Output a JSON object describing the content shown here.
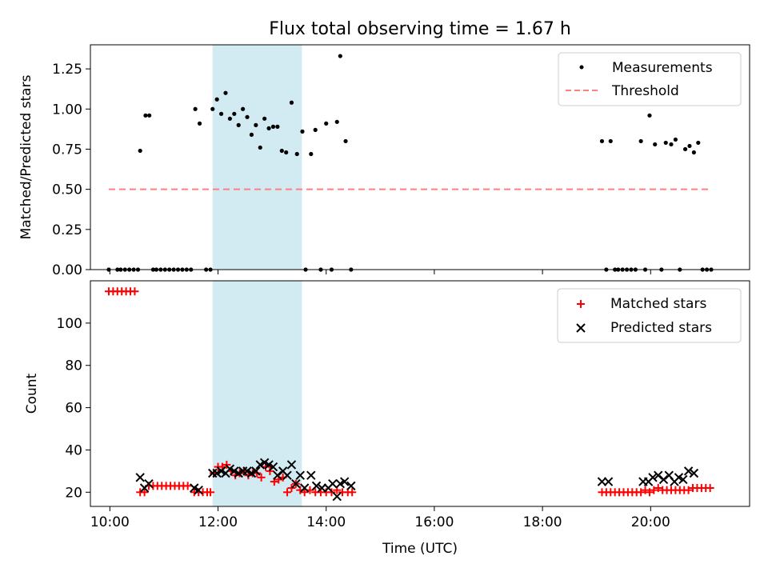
{
  "chart_data": [
    {
      "type": "scatter",
      "title": "Flux total observing time = 1.67 h",
      "xlabel": "",
      "ylabel": "Matched/Predicted stars",
      "xlim": [
        9.64,
        21.83
      ],
      "ylim": [
        0.0,
        1.4
      ],
      "y_ticks": [
        0.0,
        0.25,
        0.5,
        0.75,
        1.0,
        1.25
      ],
      "y_tick_labels": [
        "0.00",
        "0.25",
        "0.50",
        "0.75",
        "1.00",
        "1.25"
      ],
      "x_ticks": [
        10,
        12,
        14,
        16,
        18,
        20
      ],
      "highlight_span": [
        11.9,
        13.55
      ],
      "legend": {
        "placement": "top-right",
        "entries": [
          "Measurements",
          "Threshold"
        ]
      },
      "series": [
        {
          "name": "Measurements",
          "marker": "dot",
          "color": "#000000",
          "x": [
            9.98,
            10.14,
            10.2,
            10.28,
            10.36,
            10.44,
            10.52,
            10.56,
            10.66,
            10.73,
            10.8,
            10.86,
            10.94,
            11.02,
            11.1,
            11.18,
            11.26,
            11.34,
            11.42,
            11.5,
            11.58,
            11.66,
            11.78,
            11.86,
            11.9,
            11.98,
            12.06,
            12.14,
            12.22,
            12.3,
            12.38,
            12.46,
            12.54,
            12.62,
            12.7,
            12.78,
            12.86,
            12.94,
            13.02,
            13.1,
            13.18,
            13.26,
            13.36,
            13.46,
            13.56,
            13.62,
            13.72,
            13.8,
            13.9,
            14.0,
            14.1,
            14.2,
            14.26,
            14.36,
            14.46,
            19.1,
            19.18,
            19.26,
            19.34,
            19.4,
            19.48,
            19.56,
            19.64,
            19.72,
            19.82,
            19.9,
            19.98,
            20.08,
            20.2,
            20.28,
            20.38,
            20.46,
            20.54,
            20.64,
            20.72,
            20.8,
            20.88,
            20.96,
            21.04,
            21.12
          ],
          "y": [
            0.0,
            0.0,
            0.0,
            0.0,
            0.0,
            0.0,
            0.0,
            0.74,
            0.96,
            0.96,
            0.0,
            0.0,
            0.0,
            0.0,
            0.0,
            0.0,
            0.0,
            0.0,
            0.0,
            0.0,
            1.0,
            0.91,
            0.0,
            0.0,
            1.0,
            1.06,
            0.97,
            1.1,
            0.94,
            0.97,
            0.9,
            1.0,
            0.95,
            0.84,
            0.9,
            0.76,
            0.94,
            0.88,
            0.89,
            0.89,
            0.74,
            0.73,
            1.04,
            0.72,
            0.86,
            0.0,
            0.72,
            0.87,
            0.0,
            0.91,
            0.0,
            0.92,
            1.33,
            0.8,
            0.0,
            0.8,
            0.0,
            0.8,
            0.0,
            0.0,
            0.0,
            0.0,
            0.0,
            0.0,
            0.8,
            0.0,
            0.96,
            0.78,
            0.0,
            0.79,
            0.78,
            0.81,
            0.0,
            0.75,
            0.77,
            0.73,
            0.79,
            0.0,
            0.0,
            0.0
          ],
          "x_zero_fix": [
            9.98,
            10.14,
            10.2,
            10.28,
            10.36,
            10.44,
            10.52,
            10.8,
            10.86,
            10.94,
            11.02,
            11.1,
            11.18,
            11.26,
            11.34,
            11.42,
            11.5,
            11.78,
            11.86,
            13.62,
            13.9,
            14.1,
            14.46,
            19.18,
            19.34,
            19.4,
            19.48,
            19.56,
            19.64,
            19.72,
            19.9,
            20.2,
            20.54,
            20.96,
            21.04,
            21.12
          ]
        },
        {
          "name": "Threshold",
          "marker": "dashed-line",
          "color": "#ff7f7f",
          "x": [
            9.98,
            21.12
          ],
          "y": [
            0.5,
            0.5
          ]
        }
      ]
    },
    {
      "type": "scatter",
      "title": "",
      "xlabel": "Time (UTC)",
      "ylabel": "Count",
      "xlim": [
        9.64,
        21.83
      ],
      "ylim": [
        13.3,
        120
      ],
      "y_ticks": [
        20,
        40,
        60,
        80,
        100
      ],
      "y_tick_labels": [
        "20",
        "40",
        "60",
        "80",
        "100"
      ],
      "x_ticks": [
        10,
        12,
        14,
        16,
        18,
        20
      ],
      "x_tick_labels": [
        "10:00",
        "12:00",
        "14:00",
        "16:00",
        "18:00",
        "20:00"
      ],
      "highlight_span": [
        11.9,
        13.55
      ],
      "legend": {
        "placement": "top-right",
        "entries": [
          "Matched stars",
          "Predicted stars"
        ]
      },
      "series": [
        {
          "name": "Matched stars",
          "marker": "plus",
          "color": "#ff0000",
          "x": [
            9.98,
            10.06,
            10.14,
            10.22,
            10.3,
            10.38,
            10.46,
            10.56,
            10.64,
            10.72,
            10.8,
            10.88,
            10.96,
            11.04,
            11.12,
            11.2,
            11.28,
            11.36,
            11.44,
            11.56,
            11.64,
            11.72,
            11.8,
            11.86,
            11.92,
            12.0,
            12.08,
            12.16,
            12.24,
            12.32,
            12.4,
            12.48,
            12.56,
            12.64,
            12.72,
            12.8,
            12.88,
            12.96,
            13.04,
            13.12,
            13.2,
            13.28,
            13.36,
            13.44,
            13.52,
            13.6,
            13.7,
            13.8,
            13.9,
            14.0,
            14.1,
            14.2,
            14.3,
            14.4,
            14.48,
            19.1,
            19.18,
            19.26,
            19.34,
            19.42,
            19.5,
            19.58,
            19.66,
            19.74,
            19.82,
            19.9,
            19.98,
            20.06,
            20.14,
            20.22,
            20.3,
            20.38,
            20.46,
            20.54,
            20.62,
            20.7,
            20.78,
            20.86,
            20.94,
            21.02,
            21.1
          ],
          "y": [
            115,
            115,
            115,
            115,
            115,
            115,
            115,
            20,
            20,
            23,
            23,
            23,
            23,
            23,
            23,
            23,
            23,
            23,
            23,
            20,
            20,
            20,
            20,
            20,
            29,
            32,
            32,
            33,
            30,
            28,
            29,
            30,
            28,
            29,
            29,
            27,
            32,
            30,
            25,
            26,
            27,
            20,
            22,
            24,
            21,
            20,
            21,
            20,
            20,
            20,
            20,
            21,
            20,
            20,
            20,
            20,
            20,
            20,
            20,
            20,
            20,
            20,
            20,
            20,
            20,
            21,
            20,
            21,
            22,
            21,
            21,
            21,
            21,
            21,
            21,
            21,
            22,
            22,
            22,
            22,
            22
          ]
        },
        {
          "name": "Predicted stars",
          "marker": "x",
          "color": "#000000",
          "x": [
            10.56,
            10.64,
            10.72,
            11.56,
            11.64,
            11.9,
            11.98,
            12.06,
            12.14,
            12.22,
            12.3,
            12.38,
            12.46,
            12.54,
            12.62,
            12.7,
            12.78,
            12.86,
            12.94,
            13.02,
            13.1,
            13.2,
            13.28,
            13.36,
            13.44,
            13.52,
            13.6,
            13.72,
            13.82,
            13.92,
            14.04,
            14.12,
            14.2,
            14.26,
            14.34,
            14.46,
            19.1,
            19.22,
            19.86,
            19.96,
            20.04,
            20.14,
            20.24,
            20.34,
            20.44,
            20.52,
            20.6,
            20.7,
            20.8
          ],
          "y": [
            27,
            22,
            24,
            22,
            21,
            29,
            29,
            30,
            29,
            31,
            30,
            29,
            30,
            30,
            29,
            30,
            33,
            34,
            33,
            32,
            28,
            30,
            28,
            33,
            24,
            28,
            22,
            28,
            23,
            22,
            22,
            24,
            18,
            24,
            25,
            23,
            25,
            25,
            25,
            25,
            27,
            28,
            26,
            28,
            25,
            27,
            26,
            30,
            29
          ]
        }
      ]
    }
  ]
}
